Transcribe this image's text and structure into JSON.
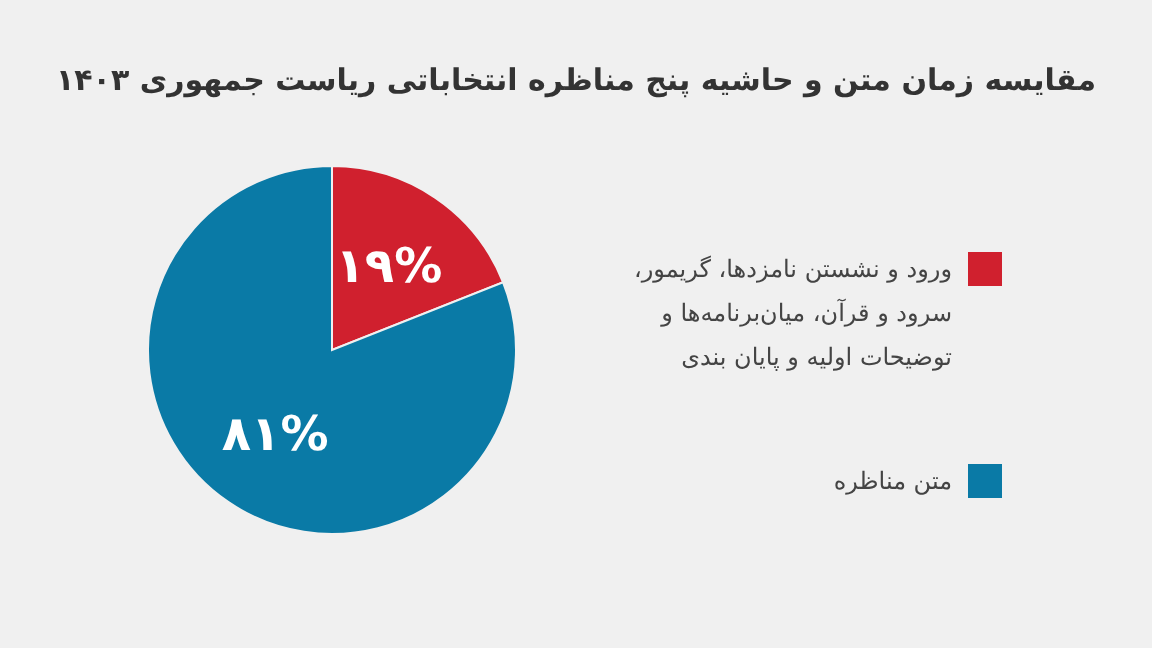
{
  "chart_data": {
    "type": "pie",
    "title": "مقایسه زمان متن و حاشیه پنج مناظره انتخاباتی ریاست جمهوری ۱۴۰۳",
    "categories": [
      "ورود و نشستن نامزدها، گریمور، سرود و قرآن، میان‌برنامه‌ها و توضیحات اولیه و پایان بندی",
      "متن مناظره"
    ],
    "values": [
      19,
      81
    ],
    "colors": [
      "#d0202e",
      "#0a7aa6"
    ],
    "value_labels": [
      "۱۹%",
      "۸۱%"
    ],
    "legend": "right"
  }
}
